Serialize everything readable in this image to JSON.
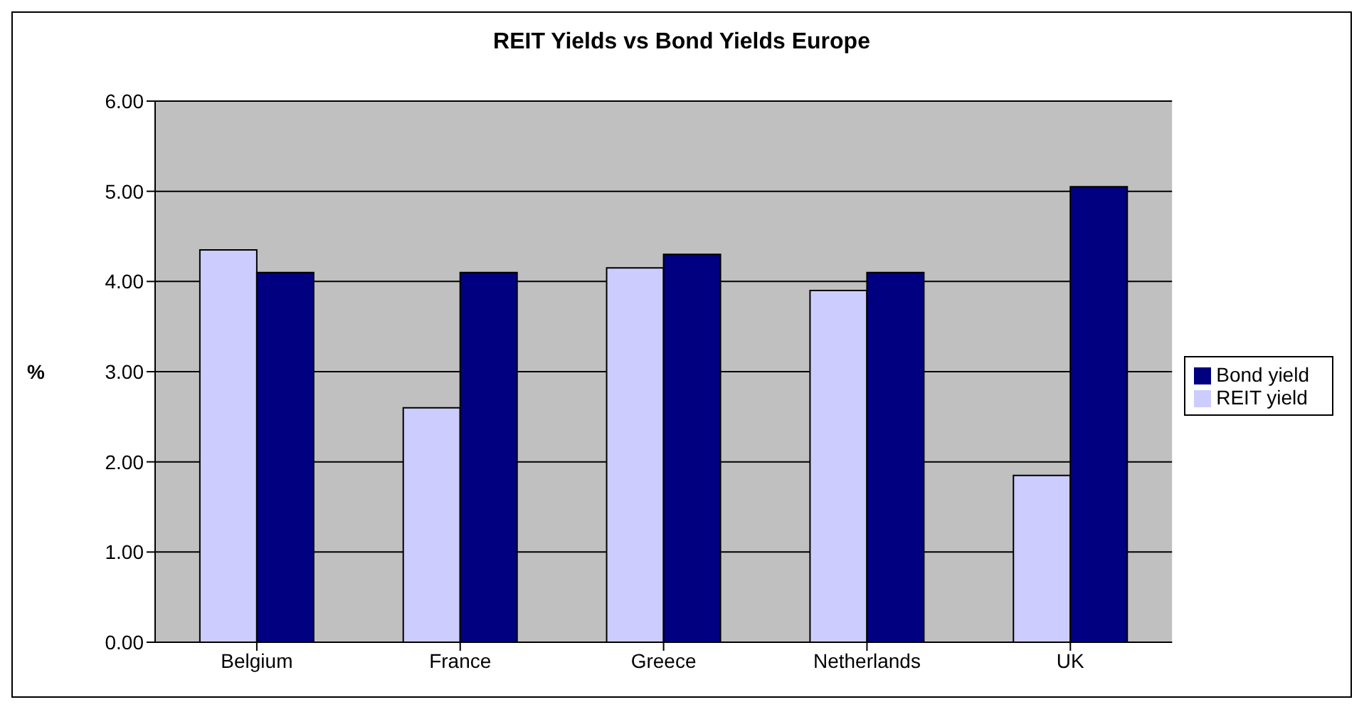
{
  "chart_data": {
    "type": "bar",
    "title": "REIT Yields vs Bond Yields Europe",
    "ylabel": "%",
    "categories": [
      "Belgium",
      "France",
      "Greece",
      "Netherlands",
      "UK"
    ],
    "series": [
      {
        "name": "REIT yield",
        "color": "#ccccff",
        "values": [
          4.35,
          2.6,
          4.15,
          3.9,
          1.85
        ]
      },
      {
        "name": "Bond yield",
        "color": "#000080",
        "values": [
          4.1,
          4.1,
          4.3,
          4.1,
          5.05
        ]
      }
    ],
    "ylim": [
      0,
      6
    ],
    "yticks": [
      {
        "value": 0,
        "label": "0.00"
      },
      {
        "value": 1,
        "label": "1.00"
      },
      {
        "value": 2,
        "label": "2.00"
      },
      {
        "value": 3,
        "label": "3.00"
      },
      {
        "value": 4,
        "label": "4.00"
      },
      {
        "value": 5,
        "label": "5.00"
      },
      {
        "value": 6,
        "label": "6.00"
      }
    ],
    "grid": "y",
    "legend": "right"
  }
}
